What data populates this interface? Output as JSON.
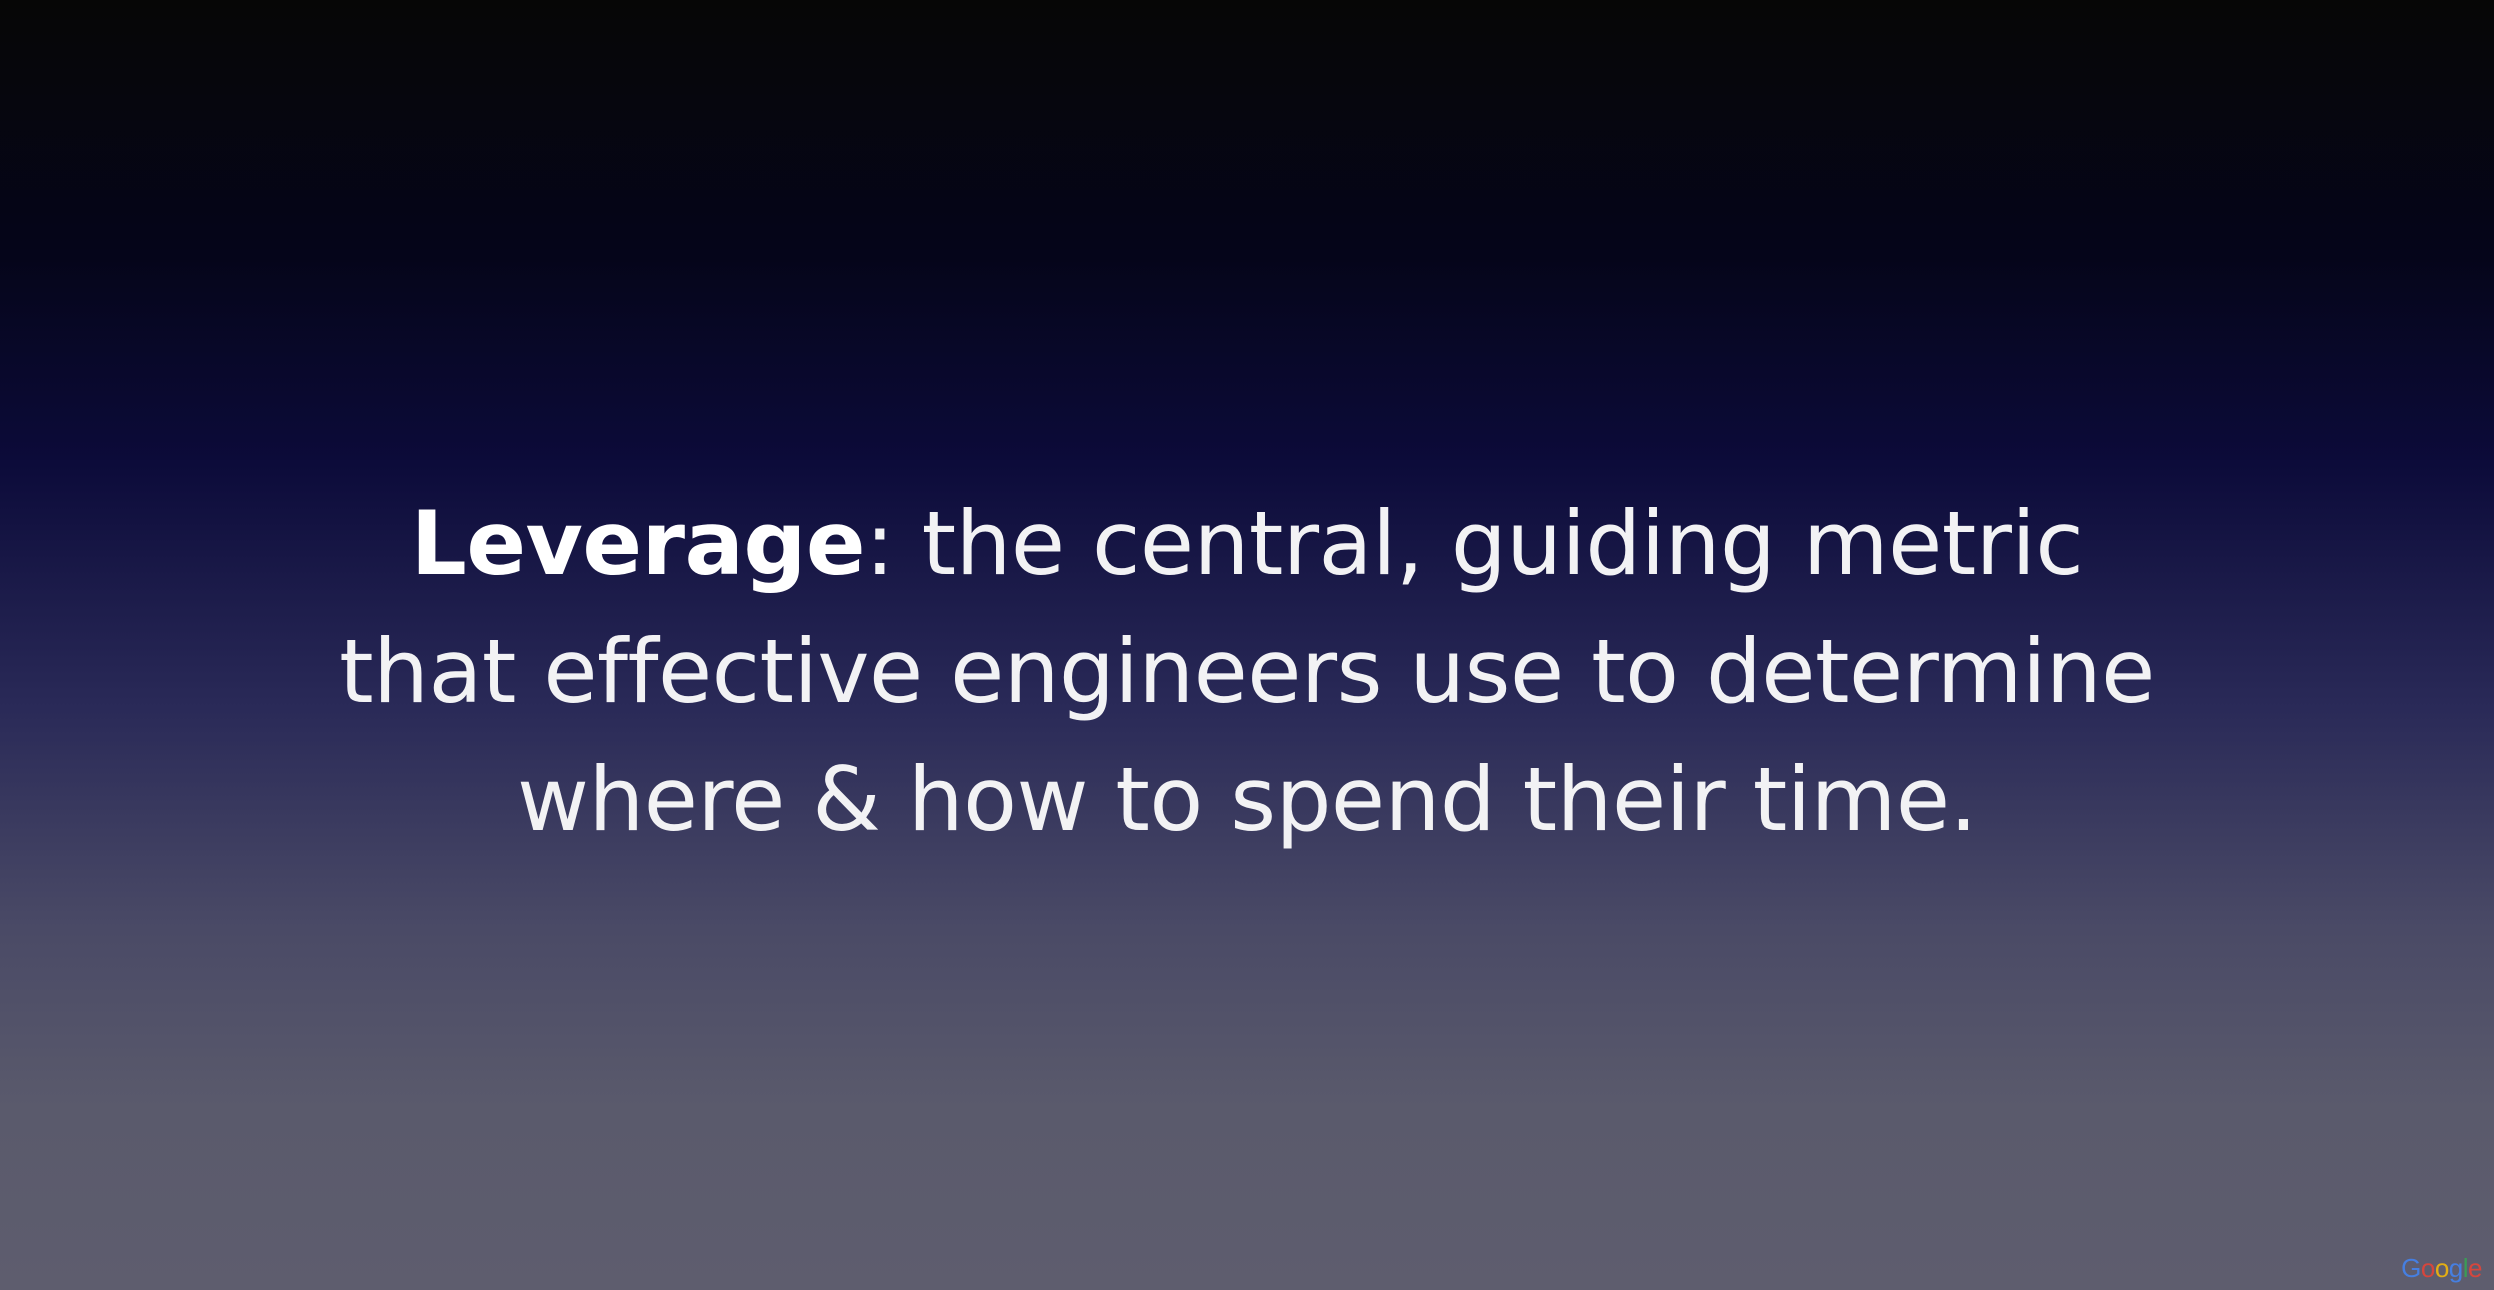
{
  "slide": {
    "term": "Leverage",
    "line1_rest": ": the central, guiding metric",
    "line2": "that effective engineers use to determine",
    "line3": "where & how to spend their time."
  },
  "watermark": {
    "letters": [
      "G",
      "o",
      "o",
      "g",
      "l",
      "e"
    ],
    "colors": [
      "#4285F4",
      "#EA4335",
      "#FBBC05",
      "#4285F4",
      "#34A853",
      "#EA4335"
    ]
  }
}
